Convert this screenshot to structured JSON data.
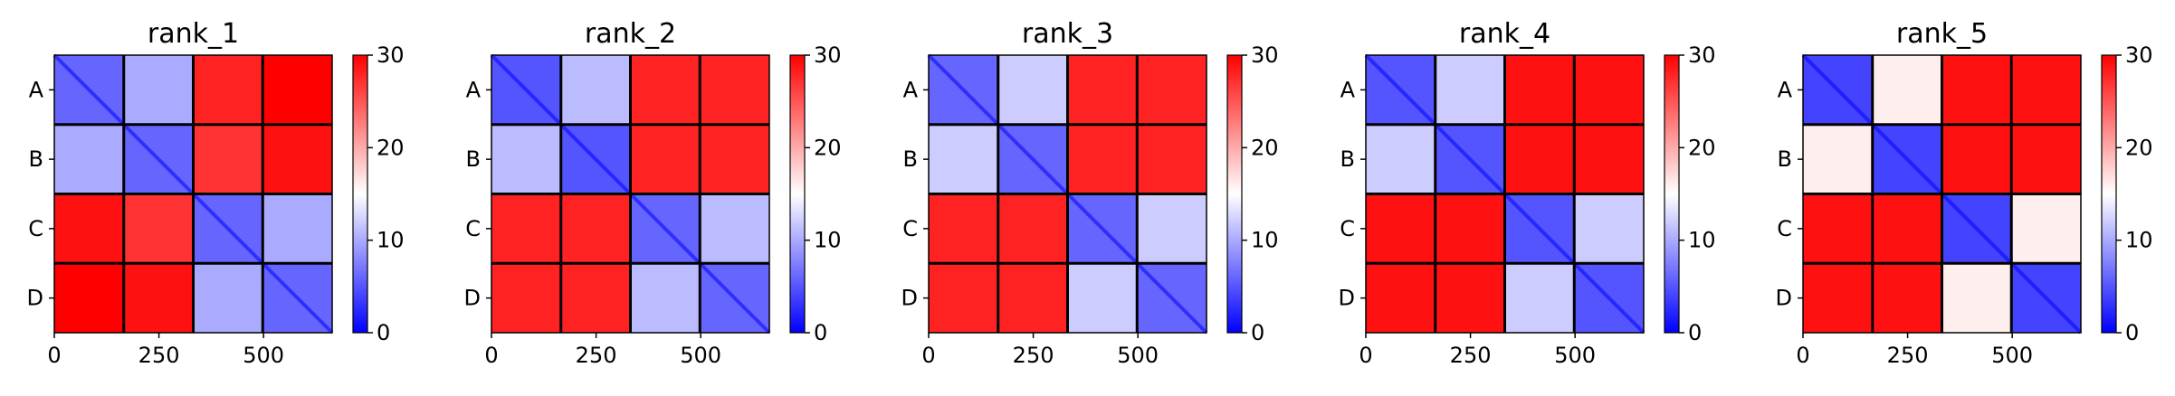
{
  "chart_data": [
    {
      "type": "heatmap",
      "title": "rank_1",
      "row_labels": [
        "A",
        "B",
        "C",
        "D"
      ],
      "x_ticks": [
        0,
        250,
        500
      ],
      "xlim": [
        0,
        664
      ],
      "block_boundaries": [
        166,
        332,
        498
      ],
      "colorbar": {
        "min": 0,
        "max": 30,
        "ticks": [
          0,
          10,
          20,
          30
        ],
        "colors": [
          "#0000ff",
          "#ffffff",
          "#ff0000"
        ]
      },
      "block_values": [
        [
          6,
          10,
          28,
          30
        ],
        [
          10,
          6,
          27,
          29
        ],
        [
          29,
          27,
          6,
          10
        ],
        [
          30,
          29,
          10,
          6
        ]
      ]
    },
    {
      "type": "heatmap",
      "title": "rank_2",
      "row_labels": [
        "A",
        "B",
        "C",
        "D"
      ],
      "x_ticks": [
        0,
        250,
        500
      ],
      "xlim": [
        0,
        664
      ],
      "block_boundaries": [
        166,
        332,
        498
      ],
      "colorbar": {
        "min": 0,
        "max": 30,
        "ticks": [
          0,
          10,
          20,
          30
        ],
        "colors": [
          "#0000ff",
          "#ffffff",
          "#ff0000"
        ]
      },
      "block_values": [
        [
          5,
          11,
          28,
          28
        ],
        [
          11,
          5,
          28,
          28
        ],
        [
          28,
          28,
          6,
          11
        ],
        [
          28,
          28,
          11,
          6
        ]
      ]
    },
    {
      "type": "heatmap",
      "title": "rank_3",
      "row_labels": [
        "A",
        "B",
        "C",
        "D"
      ],
      "x_ticks": [
        0,
        250,
        500
      ],
      "xlim": [
        0,
        664
      ],
      "block_boundaries": [
        166,
        332,
        498
      ],
      "colorbar": {
        "min": 0,
        "max": 30,
        "ticks": [
          0,
          10,
          20,
          30
        ],
        "colors": [
          "#0000ff",
          "#ffffff",
          "#ff0000"
        ]
      },
      "block_values": [
        [
          6,
          12,
          28,
          28
        ],
        [
          12,
          6,
          28,
          28
        ],
        [
          28,
          28,
          6,
          12
        ],
        [
          28,
          28,
          12,
          6
        ]
      ]
    },
    {
      "type": "heatmap",
      "title": "rank_4",
      "row_labels": [
        "A",
        "B",
        "C",
        "D"
      ],
      "x_ticks": [
        0,
        250,
        500
      ],
      "xlim": [
        0,
        664
      ],
      "block_boundaries": [
        166,
        332,
        498
      ],
      "colorbar": {
        "min": 0,
        "max": 30,
        "ticks": [
          0,
          10,
          20,
          30
        ],
        "colors": [
          "#0000ff",
          "#ffffff",
          "#ff0000"
        ]
      },
      "block_values": [
        [
          5,
          12,
          29,
          29
        ],
        [
          12,
          5,
          29,
          29
        ],
        [
          29,
          29,
          5,
          12
        ],
        [
          29,
          29,
          12,
          5
        ]
      ]
    },
    {
      "type": "heatmap",
      "title": "rank_5",
      "row_labels": [
        "A",
        "B",
        "C",
        "D"
      ],
      "x_ticks": [
        0,
        250,
        500
      ],
      "xlim": [
        0,
        664
      ],
      "block_boundaries": [
        166,
        332,
        498
      ],
      "colorbar": {
        "min": 0,
        "max": 30,
        "ticks": [
          0,
          10,
          20,
          30
        ],
        "colors": [
          "#0000ff",
          "#ffffff",
          "#ff0000"
        ]
      },
      "block_values": [
        [
          4,
          16,
          29,
          29
        ],
        [
          16,
          4,
          29,
          29
        ],
        [
          29,
          29,
          4,
          16
        ],
        [
          29,
          29,
          16,
          4
        ]
      ]
    }
  ]
}
